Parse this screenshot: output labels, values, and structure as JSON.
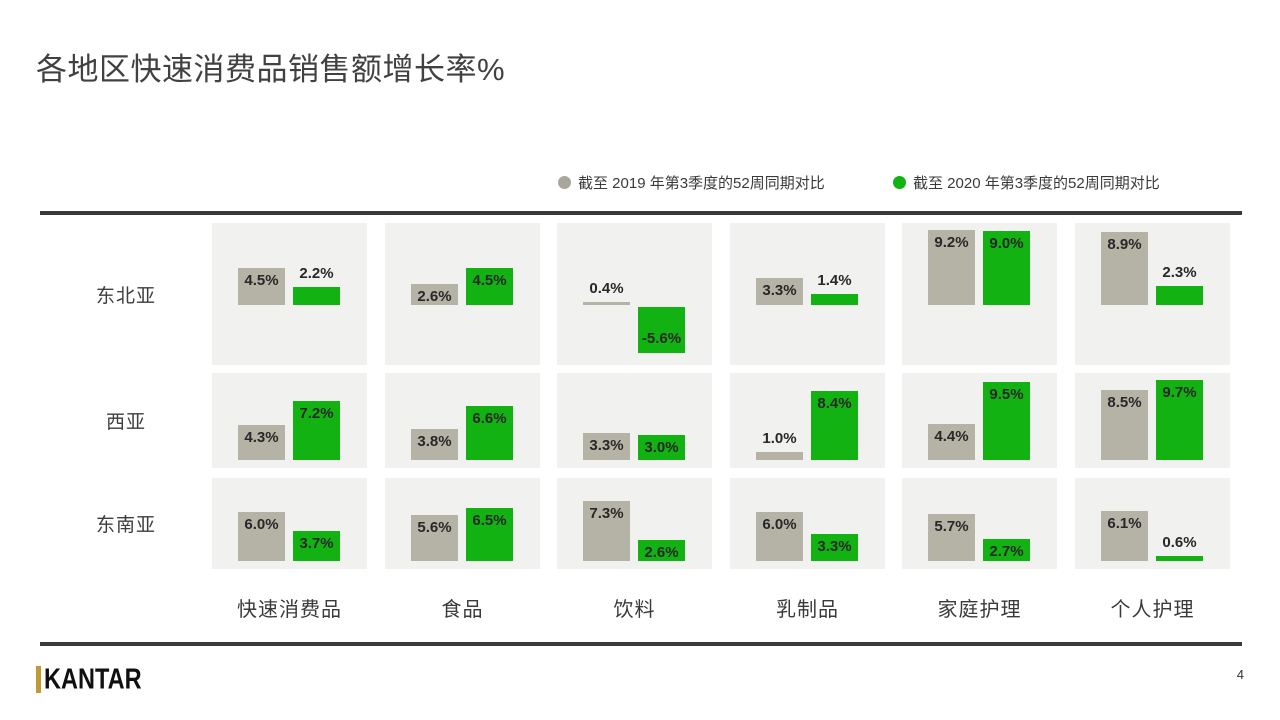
{
  "page": {
    "title": "各地区快速消费品销售额增长率%",
    "brand": "KANTAR",
    "page_number": "4"
  },
  "colors": {
    "series_2019": "#b5b2a6",
    "series_2020": "#12b212",
    "legend_dot_2019": "#a9a79b",
    "legend_dot_2020": "#12b212",
    "cell_background": "#f1f1f0",
    "divider": "#3a3a3a"
  },
  "legend": {
    "item_2019": "截至 2019 年第3季度的52周同期对比",
    "item_2020": "截至 2020 年第3季度的52周同期对比"
  },
  "chart_data": {
    "type": "bar",
    "title": "各地区快速消费品销售额增长率%",
    "unit": "%",
    "legend_position": "top-right",
    "grid": "off",
    "categories": [
      "快速消费品",
      "食品",
      "饮料",
      "乳制品",
      "家庭护理",
      "个人护理"
    ],
    "regions": [
      "东北亚",
      "西亚",
      "东南亚"
    ],
    "series_names": [
      "截至 2019 年第3季度的52周同期对比",
      "截至 2020 年第3季度的52周同期对比"
    ],
    "rows": [
      {
        "region": "东北亚",
        "values_2019": [
          4.5,
          2.6,
          0.4,
          3.3,
          9.2,
          8.9
        ],
        "values_2020": [
          2.2,
          4.5,
          -5.6,
          1.4,
          9.0,
          2.3
        ]
      },
      {
        "region": "西亚",
        "values_2019": [
          4.3,
          3.8,
          3.3,
          1.0,
          4.4,
          8.5
        ],
        "values_2020": [
          7.2,
          6.6,
          3.0,
          8.4,
          9.5,
          9.7
        ]
      },
      {
        "region": "东南亚",
        "values_2019": [
          6.0,
          5.6,
          7.3,
          6.0,
          5.7,
          6.1
        ],
        "values_2020": [
          3.7,
          6.5,
          2.6,
          3.3,
          2.7,
          0.6
        ]
      }
    ]
  }
}
